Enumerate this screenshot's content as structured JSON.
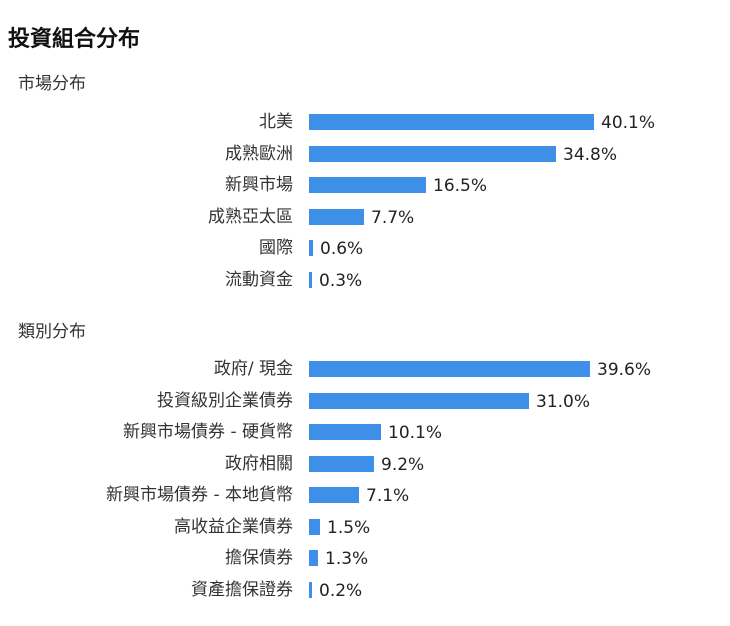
{
  "title": "投資組合分布",
  "chart_data": [
    {
      "type": "bar",
      "orientation": "horizontal",
      "title": "市場分布",
      "value_format": "percent",
      "color": "#3d8fe8",
      "categories": [
        "北美",
        "成熟歐洲",
        "新興市場",
        "成熟亞太區",
        "國際",
        "流動資金"
      ],
      "values": [
        40.1,
        34.8,
        16.5,
        7.7,
        0.6,
        0.3
      ],
      "labels": [
        "40.1%",
        "34.8%",
        "16.5%",
        "7.7%",
        "0.6%",
        "0.3%"
      ]
    },
    {
      "type": "bar",
      "orientation": "horizontal",
      "title": "類別分布",
      "value_format": "percent",
      "color": "#3d8fe8",
      "categories": [
        "政府/ 現金",
        "投資級別企業債券",
        "新興市場債券 - 硬貨幣",
        "政府相關",
        "新興市場債券 - 本地貨幣",
        "高收益企業債券",
        "擔保債券",
        "資產擔保證券"
      ],
      "values": [
        39.6,
        31.0,
        10.1,
        9.2,
        7.1,
        1.5,
        1.3,
        0.2
      ],
      "labels": [
        "39.6%",
        "31.0%",
        "10.1%",
        "9.2%",
        "7.1%",
        "1.5%",
        "1.3%",
        "0.2%"
      ]
    }
  ]
}
